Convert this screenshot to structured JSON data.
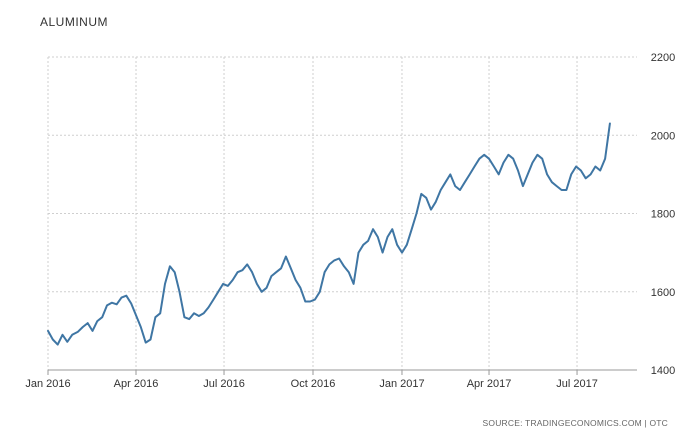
{
  "chart_data": {
    "type": "line",
    "title": "ALUMINUM",
    "source": "SOURCE: TRADINGECONOMICS.COM | OTC",
    "xlabel": "",
    "ylabel": "",
    "x_tick_labels": [
      "Jan 2016",
      "Apr 2016",
      "Jul 2016",
      "Oct 2016",
      "Jan 2017",
      "Apr 2017",
      "Jul 2017"
    ],
    "y_tick_labels": [
      "1400",
      "1600",
      "1800",
      "2000",
      "2200"
    ],
    "ylim": [
      1400,
      2200
    ],
    "xlim": [
      "2016-01-01",
      "2017-09-01"
    ],
    "grid": true,
    "legend": "none",
    "line_color": "#3f76a4",
    "series": [
      {
        "values": [
          [
            "2016-01-01",
            1500
          ],
          [
            "2016-01-06",
            1478
          ],
          [
            "2016-01-11",
            1465
          ],
          [
            "2016-01-16",
            1490
          ],
          [
            "2016-01-21",
            1472
          ],
          [
            "2016-01-26",
            1490
          ],
          [
            "2016-02-01",
            1498
          ],
          [
            "2016-02-06",
            1510
          ],
          [
            "2016-02-11",
            1520
          ],
          [
            "2016-02-16",
            1500
          ],
          [
            "2016-02-21",
            1525
          ],
          [
            "2016-02-26",
            1535
          ],
          [
            "2016-03-02",
            1565
          ],
          [
            "2016-03-07",
            1572
          ],
          [
            "2016-03-12",
            1568
          ],
          [
            "2016-03-17",
            1585
          ],
          [
            "2016-03-22",
            1590
          ],
          [
            "2016-03-27",
            1570
          ],
          [
            "2016-04-01",
            1540
          ],
          [
            "2016-04-06",
            1510
          ],
          [
            "2016-04-11",
            1470
          ],
          [
            "2016-04-16",
            1478
          ],
          [
            "2016-04-21",
            1535
          ],
          [
            "2016-04-26",
            1545
          ],
          [
            "2016-05-01",
            1620
          ],
          [
            "2016-05-06",
            1665
          ],
          [
            "2016-05-11",
            1650
          ],
          [
            "2016-05-16",
            1600
          ],
          [
            "2016-05-21",
            1535
          ],
          [
            "2016-05-26",
            1530
          ],
          [
            "2016-05-31",
            1545
          ],
          [
            "2016-06-05",
            1538
          ],
          [
            "2016-06-10",
            1545
          ],
          [
            "2016-06-15",
            1560
          ],
          [
            "2016-06-20",
            1580
          ],
          [
            "2016-06-25",
            1600
          ],
          [
            "2016-06-30",
            1620
          ],
          [
            "2016-07-05",
            1615
          ],
          [
            "2016-07-10",
            1630
          ],
          [
            "2016-07-15",
            1650
          ],
          [
            "2016-07-20",
            1655
          ],
          [
            "2016-07-25",
            1670
          ],
          [
            "2016-07-30",
            1650
          ],
          [
            "2016-08-04",
            1620
          ],
          [
            "2016-08-09",
            1600
          ],
          [
            "2016-08-14",
            1610
          ],
          [
            "2016-08-19",
            1640
          ],
          [
            "2016-08-24",
            1650
          ],
          [
            "2016-08-29",
            1660
          ],
          [
            "2016-09-03",
            1690
          ],
          [
            "2016-09-08",
            1660
          ],
          [
            "2016-09-13",
            1630
          ],
          [
            "2016-09-18",
            1610
          ],
          [
            "2016-09-23",
            1575
          ],
          [
            "2016-09-28",
            1575
          ],
          [
            "2016-10-03",
            1580
          ],
          [
            "2016-10-08",
            1600
          ],
          [
            "2016-10-13",
            1650
          ],
          [
            "2016-10-18",
            1670
          ],
          [
            "2016-10-23",
            1680
          ],
          [
            "2016-10-28",
            1685
          ],
          [
            "2016-11-02",
            1665
          ],
          [
            "2016-11-07",
            1650
          ],
          [
            "2016-11-12",
            1620
          ],
          [
            "2016-11-17",
            1700
          ],
          [
            "2016-11-22",
            1720
          ],
          [
            "2016-11-27",
            1730
          ],
          [
            "2016-12-02",
            1760
          ],
          [
            "2016-12-07",
            1740
          ],
          [
            "2016-12-12",
            1700
          ],
          [
            "2016-12-17",
            1740
          ],
          [
            "2016-12-22",
            1760
          ],
          [
            "2016-12-27",
            1720
          ],
          [
            "2017-01-01",
            1700
          ],
          [
            "2017-01-06",
            1720
          ],
          [
            "2017-01-11",
            1760
          ],
          [
            "2017-01-16",
            1800
          ],
          [
            "2017-01-21",
            1850
          ],
          [
            "2017-01-26",
            1840
          ],
          [
            "2017-01-31",
            1810
          ],
          [
            "2017-02-05",
            1830
          ],
          [
            "2017-02-10",
            1860
          ],
          [
            "2017-02-15",
            1880
          ],
          [
            "2017-02-20",
            1900
          ],
          [
            "2017-02-25",
            1870
          ],
          [
            "2017-03-02",
            1860
          ],
          [
            "2017-03-07",
            1880
          ],
          [
            "2017-03-12",
            1900
          ],
          [
            "2017-03-17",
            1920
          ],
          [
            "2017-03-22",
            1940
          ],
          [
            "2017-03-27",
            1950
          ],
          [
            "2017-04-01",
            1940
          ],
          [
            "2017-04-06",
            1920
          ],
          [
            "2017-04-11",
            1900
          ],
          [
            "2017-04-16",
            1930
          ],
          [
            "2017-04-21",
            1950
          ],
          [
            "2017-04-26",
            1940
          ],
          [
            "2017-05-01",
            1910
          ],
          [
            "2017-05-06",
            1870
          ],
          [
            "2017-05-11",
            1900
          ],
          [
            "2017-05-16",
            1930
          ],
          [
            "2017-05-21",
            1950
          ],
          [
            "2017-05-26",
            1940
          ],
          [
            "2017-05-31",
            1900
          ],
          [
            "2017-06-05",
            1880
          ],
          [
            "2017-06-10",
            1870
          ],
          [
            "2017-06-15",
            1860
          ],
          [
            "2017-06-20",
            1860
          ],
          [
            "2017-06-25",
            1900
          ],
          [
            "2017-06-30",
            1920
          ],
          [
            "2017-07-05",
            1910
          ],
          [
            "2017-07-10",
            1890
          ],
          [
            "2017-07-15",
            1900
          ],
          [
            "2017-07-20",
            1920
          ],
          [
            "2017-07-25",
            1910
          ],
          [
            "2017-07-30",
            1940
          ],
          [
            "2017-08-04",
            2030
          ]
        ]
      }
    ]
  }
}
